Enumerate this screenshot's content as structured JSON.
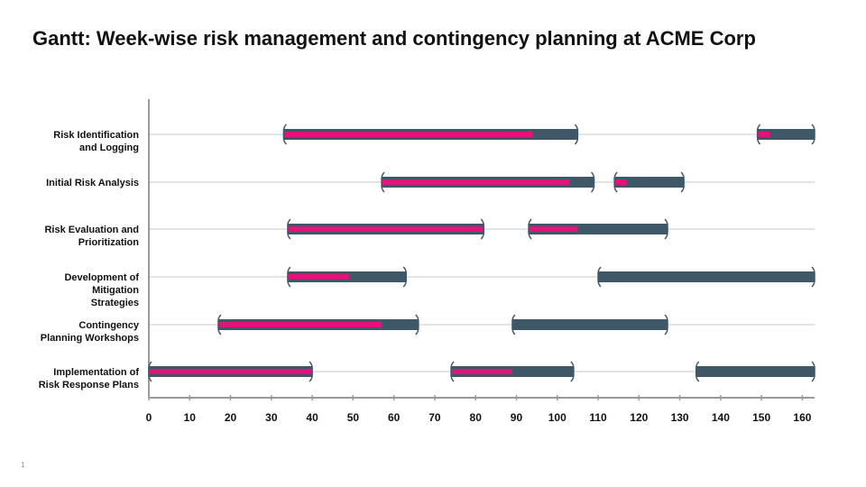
{
  "slide": {
    "title": "Gantt: Week-wise risk management and contingency planning at ACME Corp",
    "page_number": "1"
  },
  "colors": {
    "planned": "#3f5868",
    "progress": "#e0157a",
    "gridline": "#c8c8c8",
    "axis": "#9a9a9a",
    "text": "#111111"
  },
  "chart_data": {
    "type": "gantt",
    "title": "Gantt: Week-wise risk management and contingency planning at ACME Corp",
    "xlim": [
      0,
      163
    ],
    "x_ticks": [
      0,
      10,
      20,
      30,
      40,
      50,
      60,
      70,
      80,
      90,
      100,
      110,
      120,
      130,
      140,
      150,
      160
    ],
    "grid": "horizontal",
    "tasks": [
      {
        "label": [
          "Risk Identification",
          "and Logging"
        ],
        "segments": [
          {
            "start": 33,
            "end": 105,
            "progress_end": 94
          },
          {
            "start": 149,
            "end": 163,
            "progress_end": 152
          }
        ]
      },
      {
        "label": [
          "Initial Risk Analysis"
        ],
        "segments": [
          {
            "start": 57,
            "end": 109,
            "progress_end": 103
          },
          {
            "start": 114,
            "end": 131,
            "progress_end": 117
          }
        ]
      },
      {
        "label": [
          "Risk Evaluation and",
          "Prioritization"
        ],
        "segments": [
          {
            "start": 34,
            "end": 82,
            "progress_end": 82
          },
          {
            "start": 93,
            "end": 127,
            "progress_end": 105
          }
        ]
      },
      {
        "label": [
          "Development of",
          "Mitigation",
          "Strategies"
        ],
        "segments": [
          {
            "start": 34,
            "end": 63,
            "progress_end": 49
          },
          {
            "start": 110,
            "end": 163,
            "progress_end": 110
          }
        ]
      },
      {
        "label": [
          "Contingency",
          "Planning Workshops"
        ],
        "segments": [
          {
            "start": 17,
            "end": 66,
            "progress_end": 57
          },
          {
            "start": 89,
            "end": 127,
            "progress_end": 89
          }
        ]
      },
      {
        "label": [
          "Implementation of",
          "Risk Response Plans"
        ],
        "segments": [
          {
            "start": 0,
            "end": 40,
            "progress_end": 40
          },
          {
            "start": 74,
            "end": 104,
            "progress_end": 89
          },
          {
            "start": 134,
            "end": 163,
            "progress_end": 134
          }
        ]
      }
    ]
  }
}
